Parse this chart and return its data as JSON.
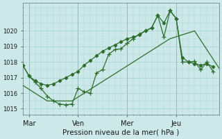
{
  "xlabel": "Pression niveau de la mer( hPa )",
  "xlim": [
    0,
    32
  ],
  "ylim": [
    1014.6,
    1021.8
  ],
  "yticks": [
    1015,
    1016,
    1017,
    1018,
    1019,
    1020
  ],
  "xtick_positions": [
    1,
    9,
    17,
    25
  ],
  "xtick_labels": [
    "Mar",
    "Ven",
    "Mer",
    "Jeu"
  ],
  "vlines": [
    1,
    9,
    17,
    25
  ],
  "bg_color": "#cce8e8",
  "grid_color": "#a8d0d0",
  "line_color": "#2d6e2d",
  "series1_x": [
    0,
    1,
    2,
    3,
    4,
    5,
    6,
    7,
    8,
    9,
    10,
    11,
    12,
    13,
    14,
    15,
    16,
    17,
    18,
    19,
    20,
    21,
    22,
    23,
    24,
    25,
    26,
    27,
    28,
    29,
    30,
    31
  ],
  "series1_y": [
    1017.8,
    1017.1,
    1016.8,
    1016.6,
    1016.5,
    1016.6,
    1016.8,
    1017.0,
    1017.2,
    1017.4,
    1017.8,
    1018.1,
    1018.4,
    1018.7,
    1018.9,
    1019.1,
    1019.3,
    1019.5,
    1019.6,
    1019.75,
    1020.0,
    1020.2,
    1021.0,
    1020.5,
    1021.3,
    1020.8,
    1018.3,
    1018.0,
    1017.9,
    1017.8,
    1017.9,
    1017.7
  ],
  "series2_x": [
    0,
    1,
    2,
    3,
    4,
    5,
    6,
    7,
    8,
    9,
    10,
    11,
    12,
    13,
    14,
    15,
    16,
    17,
    18,
    19,
    20,
    21,
    22,
    23,
    24,
    25,
    26,
    27,
    28,
    29,
    30,
    31
  ],
  "series2_y": [
    1017.8,
    1017.1,
    1016.7,
    1016.3,
    1015.8,
    1015.5,
    1015.3,
    1015.25,
    1015.3,
    1016.3,
    1016.1,
    1016.0,
    1017.3,
    1017.5,
    1018.5,
    1018.8,
    1018.85,
    1019.2,
    1019.5,
    1019.8,
    1020.0,
    1020.2,
    1021.0,
    1019.6,
    1021.3,
    1020.8,
    1018.0,
    1018.0,
    1018.05,
    1017.5,
    1018.0,
    1017.4
  ],
  "series3_x": [
    0,
    4,
    8,
    12,
    16,
    20,
    24,
    28,
    32
  ],
  "series3_y": [
    1016.5,
    1015.5,
    1015.5,
    1016.5,
    1017.5,
    1018.5,
    1019.5,
    1020.0,
    1017.6
  ]
}
